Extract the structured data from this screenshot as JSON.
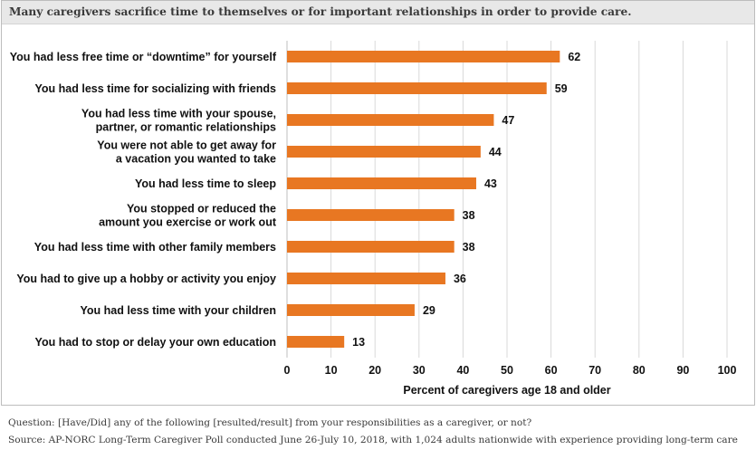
{
  "header": {
    "title": "Many caregivers sacrifice time to themselves or for important relationships in order to provide care."
  },
  "chart_data": {
    "type": "bar",
    "orientation": "horizontal",
    "title": "Many caregivers sacrifice time to themselves or for important relationships in order to provide care.",
    "xlabel": "Percent of caregivers age 18 and older",
    "ylabel": "",
    "xlim": [
      0,
      100
    ],
    "xticks": [
      0,
      10,
      20,
      30,
      40,
      50,
      60,
      70,
      80,
      90,
      100
    ],
    "grid": true,
    "bar_color": "#e87722",
    "categories": [
      [
        "You had less free time or “downtime” for yourself"
      ],
      [
        "You had less time for socializing with friends"
      ],
      [
        "You had less time with your spouse,",
        "partner, or romantic relationships"
      ],
      [
        "You were not able to get away for",
        "a vacation you wanted to take"
      ],
      [
        "You had less time to sleep"
      ],
      [
        "You stopped or reduced the",
        "amount you exercise or work out"
      ],
      [
        "You had less time with other family members"
      ],
      [
        "You had to give up a hobby or activity you enjoy"
      ],
      [
        "You had less time with your children"
      ],
      [
        "You had to stop or delay your own education"
      ]
    ],
    "values": [
      62,
      59,
      47,
      44,
      43,
      38,
      38,
      36,
      29,
      13
    ]
  },
  "footer": {
    "question": "Question: [Have/Did] any of the following [resulted/result] from your responsibilities as a caregiver, or not?",
    "source": "Source: AP-NORC Long-Term Caregiver Poll conducted June 26-July 10, 2018, with 1,024 adults nationwide with experience providing long-term care"
  }
}
